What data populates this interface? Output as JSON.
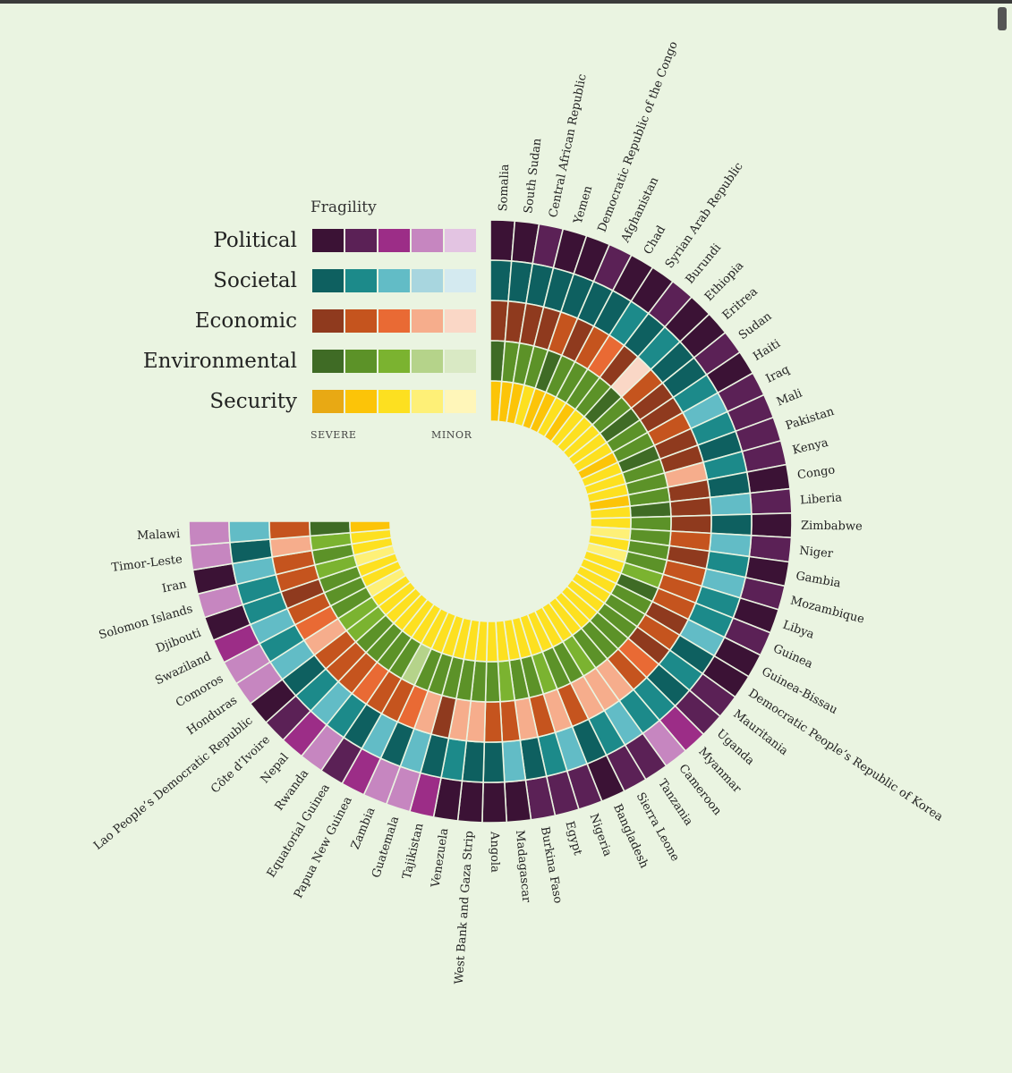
{
  "legend": {
    "title": "Fragility",
    "severe_label": "SEVERE",
    "minor_label": "MINOR",
    "rows": [
      {
        "label": "Political",
        "colors": [
          "#3b1235",
          "#5b2156",
          "#9c2d87",
          "#c686c0",
          "#e3c4e2"
        ]
      },
      {
        "label": "Societal",
        "colors": [
          "#0e6060",
          "#1c8a8a",
          "#62bcc6",
          "#a8d6df",
          "#d4eaf0"
        ]
      },
      {
        "label": "Economic",
        "colors": [
          "#8f3a1e",
          "#c5541e",
          "#e96a34",
          "#f6ad8c",
          "#fad7c6"
        ]
      },
      {
        "label": "Environmental",
        "colors": [
          "#3f6b25",
          "#5c9228",
          "#7bb330",
          "#b5d38a",
          "#d9e9c4"
        ]
      },
      {
        "label": "Security",
        "colors": [
          "#e8a914",
          "#fcc408",
          "#fde020",
          "#fef077",
          "#fff6b9"
        ]
      }
    ]
  },
  "chart_data": {
    "type": "radial-heatmap",
    "rings": [
      "Political",
      "Societal",
      "Economic",
      "Environmental",
      "Security"
    ],
    "levels": [
      "severe",
      "high",
      "moderate",
      "low",
      "minor"
    ],
    "countries": [
      {
        "name": "Somalia",
        "levels": [
          0,
          0,
          0,
          0,
          1
        ]
      },
      {
        "name": "South Sudan",
        "levels": [
          0,
          0,
          0,
          1,
          1
        ]
      },
      {
        "name": "Central African Republic",
        "levels": [
          1,
          0,
          0,
          1,
          1
        ]
      },
      {
        "name": "Yemen",
        "levels": [
          0,
          0,
          0,
          1,
          2
        ]
      },
      {
        "name": "Democratic Republic of the Congo",
        "levels": [
          0,
          0,
          1,
          0,
          1
        ]
      },
      {
        "name": "Afghanistan",
        "levels": [
          1,
          0,
          0,
          1,
          1
        ]
      },
      {
        "name": "Chad",
        "levels": [
          0,
          0,
          1,
          1,
          2
        ]
      },
      {
        "name": "Syrian Arab Republic",
        "levels": [
          0,
          1,
          2,
          1,
          1
        ]
      },
      {
        "name": "Burundi",
        "levels": [
          1,
          0,
          0,
          1,
          2
        ]
      },
      {
        "name": "Ethiopia",
        "levels": [
          0,
          1,
          4,
          0,
          2
        ]
      },
      {
        "name": "Eritrea",
        "levels": [
          0,
          0,
          1,
          1,
          2
        ]
      },
      {
        "name": "Sudan",
        "levels": [
          1,
          0,
          0,
          0,
          2
        ]
      },
      {
        "name": "Haiti",
        "levels": [
          0,
          1,
          0,
          1,
          2
        ]
      },
      {
        "name": "Iraq",
        "levels": [
          1,
          2,
          1,
          1,
          1
        ]
      },
      {
        "name": "Mali",
        "levels": [
          1,
          1,
          0,
          0,
          2
        ]
      },
      {
        "name": "Pakistan",
        "levels": [
          1,
          0,
          0,
          1,
          2
        ]
      },
      {
        "name": "Kenya",
        "levels": [
          1,
          1,
          3,
          1,
          2
        ]
      },
      {
        "name": "Congo",
        "levels": [
          0,
          0,
          0,
          1,
          1
        ]
      },
      {
        "name": "Liberia",
        "levels": [
          1,
          2,
          0,
          0,
          2
        ]
      },
      {
        "name": "Zimbabwe",
        "levels": [
          0,
          0,
          0,
          1,
          2
        ]
      },
      {
        "name": "Niger",
        "levels": [
          1,
          2,
          1,
          1,
          3
        ]
      },
      {
        "name": "Gambia",
        "levels": [
          0,
          1,
          0,
          1,
          2
        ]
      },
      {
        "name": "Mozambique",
        "levels": [
          1,
          2,
          1,
          1,
          3
        ]
      },
      {
        "name": "Libya",
        "levels": [
          0,
          1,
          1,
          2,
          2
        ]
      },
      {
        "name": "Guinea",
        "levels": [
          1,
          1,
          1,
          0,
          2
        ]
      },
      {
        "name": "Guinea-Bissau",
        "levels": [
          0,
          2,
          0,
          1,
          2
        ]
      },
      {
        "name": "Democratic People’s Republic of Korea",
        "levels": [
          0,
          0,
          1,
          1,
          2
        ]
      },
      {
        "name": "Mauritania",
        "levels": [
          1,
          1,
          0,
          1,
          2
        ]
      },
      {
        "name": "Uganda",
        "levels": [
          1,
          0,
          2,
          1,
          2
        ]
      },
      {
        "name": "Myanmar",
        "levels": [
          2,
          1,
          1,
          1,
          2
        ]
      },
      {
        "name": "Cameroon",
        "levels": [
          3,
          1,
          3,
          1,
          2
        ]
      },
      {
        "name": "Tanzania",
        "levels": [
          1,
          2,
          3,
          2,
          2
        ]
      },
      {
        "name": "Sierra Leone",
        "levels": [
          1,
          1,
          3,
          1,
          2
        ]
      },
      {
        "name": "Bangladesh",
        "levels": [
          0,
          0,
          1,
          1,
          2
        ]
      },
      {
        "name": "Nigeria",
        "levels": [
          1,
          2,
          3,
          2,
          2
        ]
      },
      {
        "name": "Egypt",
        "levels": [
          1,
          1,
          1,
          1,
          2
        ]
      },
      {
        "name": "Burkina Faso",
        "levels": [
          1,
          0,
          3,
          1,
          2
        ]
      },
      {
        "name": "Madagascar",
        "levels": [
          0,
          2,
          1,
          2,
          2
        ]
      },
      {
        "name": "Angola",
        "levels": [
          0,
          0,
          1,
          1,
          2
        ]
      },
      {
        "name": "West Bank and Gaza Strip",
        "levels": [
          0,
          0,
          3,
          1,
          2
        ]
      },
      {
        "name": "Venezuela",
        "levels": [
          0,
          1,
          3,
          1,
          2
        ]
      },
      {
        "name": "Tajikistan",
        "levels": [
          2,
          0,
          0,
          1,
          2
        ]
      },
      {
        "name": "Guatemala",
        "levels": [
          3,
          2,
          3,
          1,
          2
        ]
      },
      {
        "name": "Zambia",
        "levels": [
          3,
          0,
          2,
          1,
          2
        ]
      },
      {
        "name": "Papua New Guinea",
        "levels": [
          2,
          2,
          1,
          3,
          2
        ]
      },
      {
        "name": "Equatorial Guinea",
        "levels": [
          1,
          0,
          1,
          1,
          2
        ]
      },
      {
        "name": "Rwanda",
        "levels": [
          3,
          1,
          2,
          1,
          2
        ]
      },
      {
        "name": "Nepal",
        "levels": [
          2,
          2,
          1,
          1,
          2
        ]
      },
      {
        "name": "Côte d’Ivoire",
        "levels": [
          1,
          1,
          1,
          1,
          2
        ]
      },
      {
        "name": "Lao People’s Democratic Republic",
        "levels": [
          0,
          0,
          1,
          2,
          2
        ]
      },
      {
        "name": "Honduras",
        "levels": [
          3,
          2,
          3,
          2,
          2
        ]
      },
      {
        "name": "Comoros",
        "levels": [
          3,
          1,
          2,
          1,
          3
        ]
      },
      {
        "name": "Swaziland",
        "levels": [
          2,
          2,
          1,
          1,
          2
        ]
      },
      {
        "name": "Djibouti",
        "levels": [
          0,
          1,
          0,
          1,
          2
        ]
      },
      {
        "name": "Solomon Islands",
        "levels": [
          3,
          1,
          1,
          2,
          3
        ]
      },
      {
        "name": "Iran",
        "levels": [
          0,
          2,
          1,
          1,
          2
        ]
      },
      {
        "name": "Timor-Leste",
        "levels": [
          3,
          0,
          3,
          2,
          2
        ]
      },
      {
        "name": "Malawi",
        "levels": [
          3,
          2,
          1,
          0,
          1
        ]
      }
    ]
  }
}
